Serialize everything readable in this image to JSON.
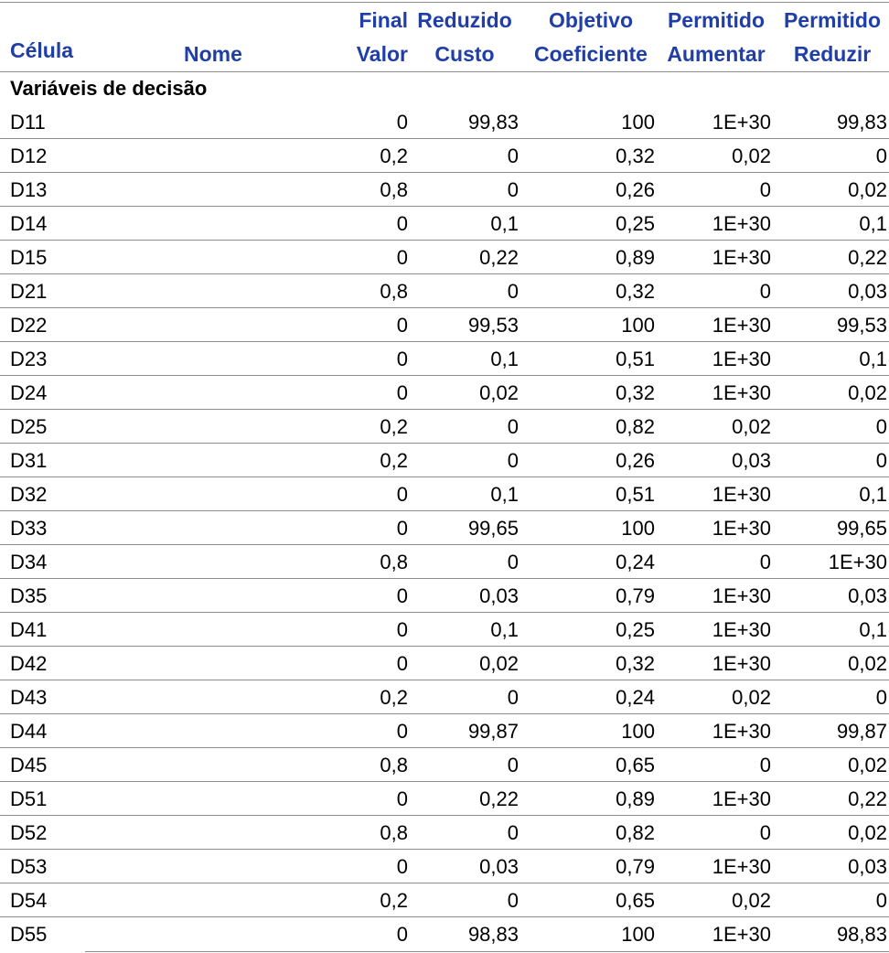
{
  "headers": {
    "cell": {
      "l1": "",
      "l2": "Célula"
    },
    "name": {
      "l1": "",
      "l2": "Nome"
    },
    "value": {
      "l1": "Final",
      "l2": "Valor"
    },
    "cost": {
      "l1": "Reduzido",
      "l2": "Custo"
    },
    "objective": {
      "l1": "Objetivo",
      "l2": "Coeficiente"
    },
    "increase": {
      "l1": "Permitido",
      "l2": "Aumentar"
    },
    "decrease": {
      "l1": "Permitido",
      "l2": "Reduzir"
    }
  },
  "section_title": "Variáveis de decisão",
  "rows": [
    {
      "cell": "D11",
      "value": "0",
      "cost": "99,83",
      "objective": "100",
      "increase": "1E+30",
      "decrease": "99,83"
    },
    {
      "cell": "D12",
      "value": "0,2",
      "cost": "0",
      "objective": "0,32",
      "increase": "0,02",
      "decrease": "0"
    },
    {
      "cell": "D13",
      "value": "0,8",
      "cost": "0",
      "objective": "0,26",
      "increase": "0",
      "decrease": "0,02"
    },
    {
      "cell": "D14",
      "value": "0",
      "cost": "0,1",
      "objective": "0,25",
      "increase": "1E+30",
      "decrease": "0,1"
    },
    {
      "cell": "D15",
      "value": "0",
      "cost": "0,22",
      "objective": "0,89",
      "increase": "1E+30",
      "decrease": "0,22"
    },
    {
      "cell": "D21",
      "value": "0,8",
      "cost": "0",
      "objective": "0,32",
      "increase": "0",
      "decrease": "0,03"
    },
    {
      "cell": "D22",
      "value": "0",
      "cost": "99,53",
      "objective": "100",
      "increase": "1E+30",
      "decrease": "99,53"
    },
    {
      "cell": "D23",
      "value": "0",
      "cost": "0,1",
      "objective": "0,51",
      "increase": "1E+30",
      "decrease": "0,1"
    },
    {
      "cell": "D24",
      "value": "0",
      "cost": "0,02",
      "objective": "0,32",
      "increase": "1E+30",
      "decrease": "0,02"
    },
    {
      "cell": "D25",
      "value": "0,2",
      "cost": "0",
      "objective": "0,82",
      "increase": "0,02",
      "decrease": "0"
    },
    {
      "cell": "D31",
      "value": "0,2",
      "cost": "0",
      "objective": "0,26",
      "increase": "0,03",
      "decrease": "0"
    },
    {
      "cell": "D32",
      "value": "0",
      "cost": "0,1",
      "objective": "0,51",
      "increase": "1E+30",
      "decrease": "0,1"
    },
    {
      "cell": "D33",
      "value": "0",
      "cost": "99,65",
      "objective": "100",
      "increase": "1E+30",
      "decrease": "99,65"
    },
    {
      "cell": "D34",
      "value": "0,8",
      "cost": "0",
      "objective": "0,24",
      "increase": "0",
      "decrease": "1E+30"
    },
    {
      "cell": "D35",
      "value": "0",
      "cost": "0,03",
      "objective": "0,79",
      "increase": "1E+30",
      "decrease": "0,03"
    },
    {
      "cell": "D41",
      "value": "0",
      "cost": "0,1",
      "objective": "0,25",
      "increase": "1E+30",
      "decrease": "0,1"
    },
    {
      "cell": "D42",
      "value": "0",
      "cost": "0,02",
      "objective": "0,32",
      "increase": "1E+30",
      "decrease": "0,02"
    },
    {
      "cell": "D43",
      "value": "0,2",
      "cost": "0",
      "objective": "0,24",
      "increase": "0,02",
      "decrease": "0"
    },
    {
      "cell": "D44",
      "value": "0",
      "cost": "99,87",
      "objective": "100",
      "increase": "1E+30",
      "decrease": "99,87"
    },
    {
      "cell": "D45",
      "value": "0,8",
      "cost": "0",
      "objective": "0,65",
      "increase": "0",
      "decrease": "0,02"
    },
    {
      "cell": "D51",
      "value": "0",
      "cost": "0,22",
      "objective": "0,89",
      "increase": "1E+30",
      "decrease": "0,22"
    },
    {
      "cell": "D52",
      "value": "0,8",
      "cost": "0",
      "objective": "0,82",
      "increase": "0",
      "decrease": "0,02"
    },
    {
      "cell": "D53",
      "value": "0",
      "cost": "0,03",
      "objective": "0,79",
      "increase": "1E+30",
      "decrease": "0,03"
    },
    {
      "cell": "D54",
      "value": "0,2",
      "cost": "0",
      "objective": "0,65",
      "increase": "0,02",
      "decrease": "0"
    },
    {
      "cell": "D55",
      "value": "0",
      "cost": "98,83",
      "objective": "100",
      "increase": "1E+30",
      "decrease": "98,83"
    }
  ]
}
